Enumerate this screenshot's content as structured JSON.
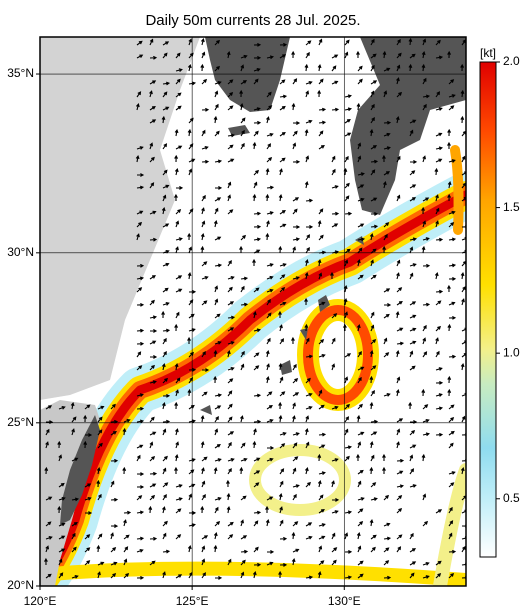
{
  "map": {
    "title": "Daily 50m currents 28 Jul. 2025.",
    "xlim": [
      120,
      134
    ],
    "ylim": [
      20,
      36
    ],
    "lon_ticks": [
      {
        "value": 120,
        "label": "120°E"
      },
      {
        "value": 125,
        "label": "125°E"
      },
      {
        "value": 130,
        "label": "130°E"
      }
    ],
    "lat_ticks": [
      {
        "value": 20,
        "label": "20°N"
      },
      {
        "value": 25,
        "label": "25°N"
      },
      {
        "value": 30,
        "label": "30°N"
      },
      {
        "value": 35,
        "label": "35°N"
      }
    ],
    "colorbar": {
      "label": "[kt]",
      "lim": [
        0.3,
        2.0
      ],
      "ticks": [
        {
          "value": 0.5,
          "label": "0.5"
        },
        {
          "value": 1,
          "label": "1.0"
        },
        {
          "value": 1.5,
          "label": "1.5"
        },
        {
          "value": 2,
          "label": "2.0"
        }
      ]
    }
  }
}
